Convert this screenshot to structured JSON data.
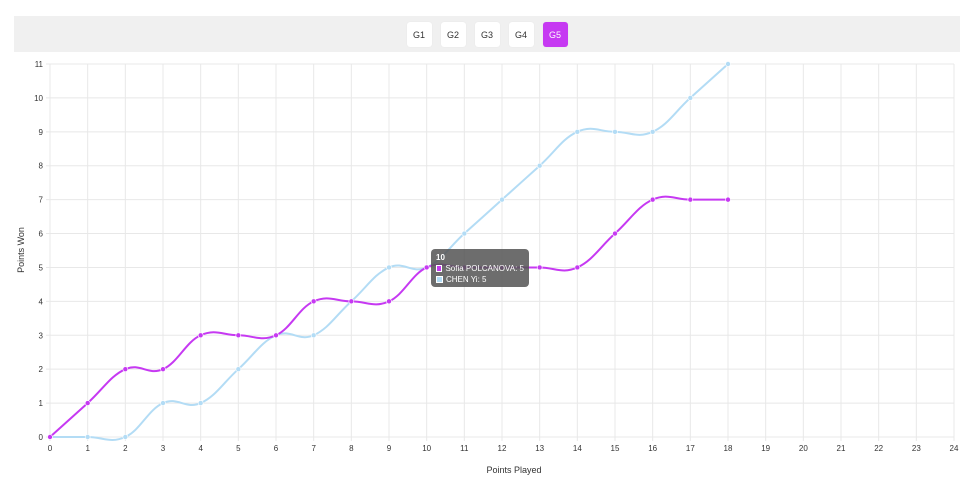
{
  "tabs": [
    {
      "label": "G1",
      "active": false
    },
    {
      "label": "G2",
      "active": false
    },
    {
      "label": "G3",
      "active": false
    },
    {
      "label": "G4",
      "active": false
    },
    {
      "label": "G5",
      "active": true
    }
  ],
  "colors": {
    "accent": "#c639f2",
    "series_1": "#c639f2",
    "series_2": "#b3dcf5",
    "grid": "#e8e8e8",
    "tooltip_bg": "#555555"
  },
  "tooltip": {
    "title": "10",
    "rows": [
      {
        "label": "Sofia POLCANOVA: 5",
        "series": 0
      },
      {
        "label": "CHEN Yi: 5",
        "series": 1
      }
    ]
  },
  "chart_data": {
    "type": "line",
    "xlabel": "Points Played",
    "ylabel": "Points Won",
    "xlim": [
      0,
      24
    ],
    "ylim": [
      0,
      11
    ],
    "grid": true,
    "legend": "none",
    "series": [
      {
        "name": "Sofia POLCANOVA",
        "color": "#c639f2",
        "x": [
          0,
          1,
          2,
          3,
          4,
          5,
          6,
          7,
          8,
          9,
          10,
          11,
          12,
          13,
          14,
          15,
          16,
          17,
          18
        ],
        "values": [
          0,
          1,
          2,
          2,
          3,
          3,
          3,
          4,
          4,
          4,
          5,
          5,
          5,
          5,
          5,
          6,
          7,
          7,
          7
        ]
      },
      {
        "name": "CHEN Yi",
        "color": "#b3dcf5",
        "x": [
          0,
          1,
          2,
          3,
          4,
          5,
          6,
          7,
          8,
          9,
          10,
          11,
          12,
          13,
          14,
          15,
          16,
          17,
          18
        ],
        "values": [
          0,
          0,
          0,
          1,
          1,
          2,
          3,
          3,
          4,
          5,
          5,
          6,
          7,
          8,
          9,
          9,
          9,
          10,
          11
        ]
      }
    ]
  }
}
